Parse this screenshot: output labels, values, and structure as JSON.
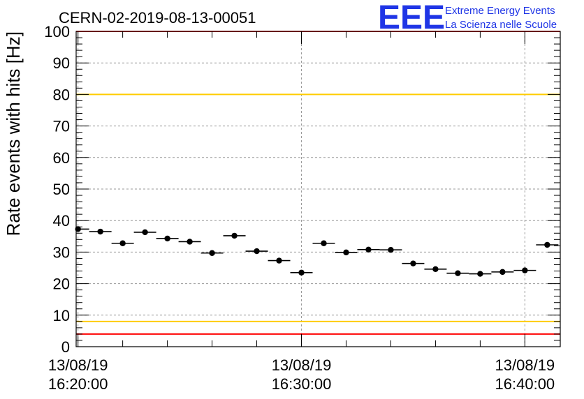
{
  "chart_data": {
    "type": "scatter",
    "title": "CERN-02-2019-08-13-00051",
    "ylabel": "Rate events with hits [Hz]",
    "xlabel": "",
    "ylim": [
      0,
      100
    ],
    "y_ticks": [
      0,
      10,
      20,
      30,
      40,
      50,
      60,
      70,
      80,
      90,
      100
    ],
    "x_range": [
      "16:19:55",
      "16:41:35"
    ],
    "x_tick_labels": [
      {
        "time": "16:20:00",
        "date": "13/08/19",
        "time_label": "16:20:00"
      },
      {
        "time": "16:30:00",
        "date": "13/08/19",
        "time_label": "16:30:00"
      },
      {
        "time": "16:40:00",
        "date": "13/08/19",
        "time_label": "16:40:00"
      }
    ],
    "grid": true,
    "series": [
      {
        "x": [
          "16:20:00",
          "16:21:00",
          "16:22:00",
          "16:23:00",
          "16:24:00",
          "16:25:00",
          "16:26:00",
          "16:27:00",
          "16:28:00",
          "16:29:00",
          "16:30:00",
          "16:31:00",
          "16:32:00",
          "16:33:00",
          "16:34:00",
          "16:35:00",
          "16:36:00",
          "16:37:00",
          "16:38:00",
          "16:39:00",
          "16:40:00",
          "16:41:00"
        ],
        "values": [
          37.3,
          36.5,
          32.8,
          36.3,
          34.3,
          33.3,
          29.7,
          35.2,
          30.3,
          27.3,
          23.5,
          32.8,
          29.9,
          30.8,
          30.7,
          26.4,
          24.6,
          23.3,
          23.1,
          23.7,
          24.2,
          32.3
        ],
        "x_bin_width_minutes": 1,
        "color": "#000000"
      }
    ],
    "reference_lines": [
      {
        "y": 100,
        "color": "#ff0000"
      },
      {
        "y": 80,
        "color": "#ffcc00"
      },
      {
        "y": 8,
        "color": "#ffcc00"
      },
      {
        "y": 4,
        "color": "#ff0000"
      }
    ]
  },
  "logo": {
    "letters": "EEE",
    "line1": "Extreme Energy Events",
    "line2": "La Scienza nelle Scuole",
    "color": "#1f35e6"
  }
}
